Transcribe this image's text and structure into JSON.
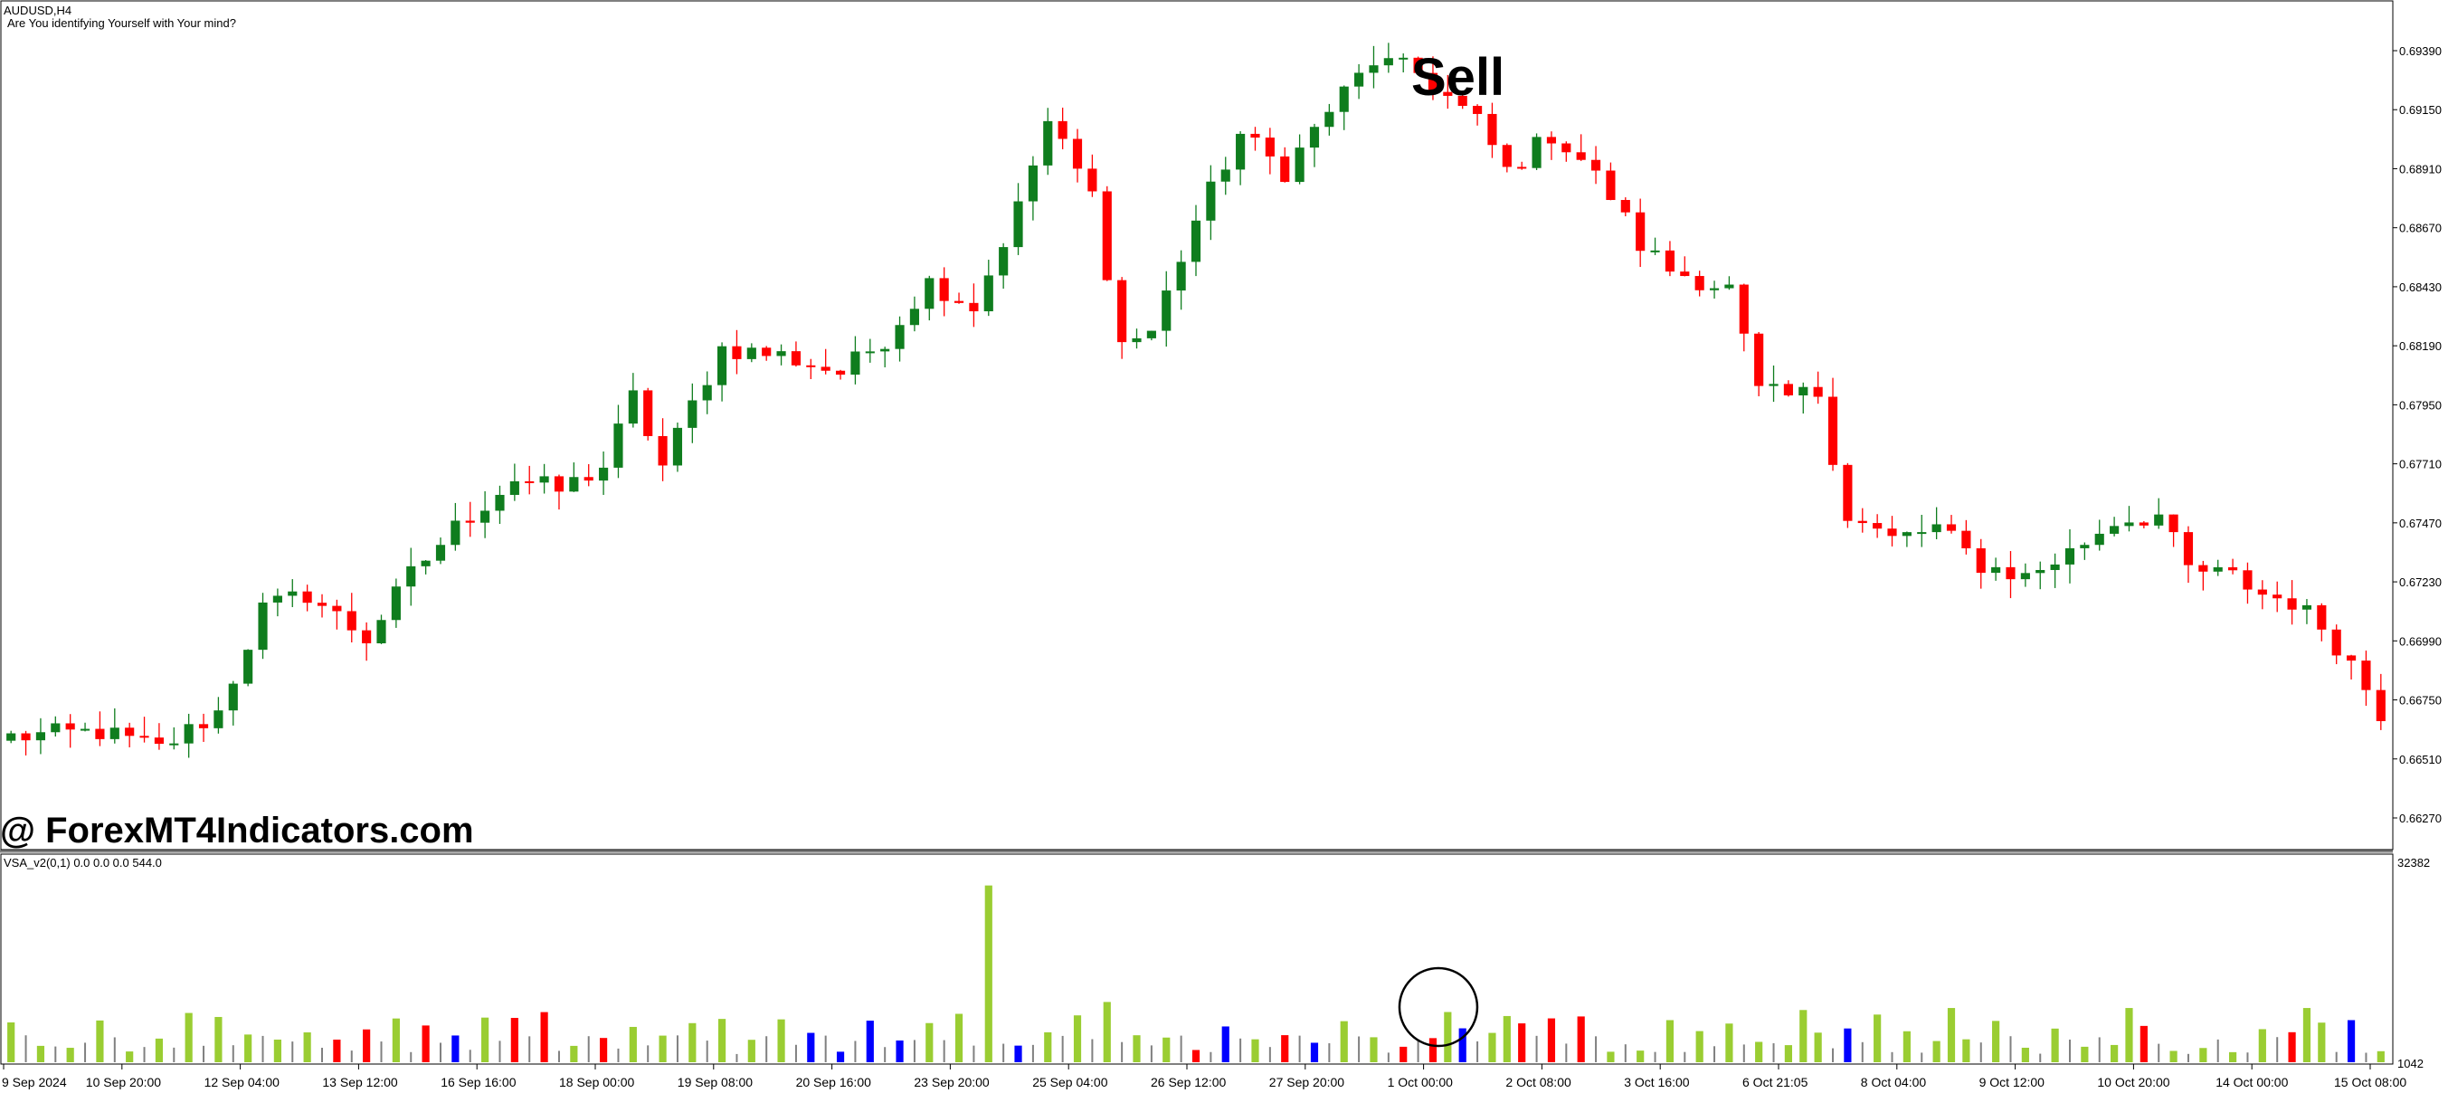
{
  "window": {
    "symbol": "AUDUSD,H4",
    "comment": "Are You identifying Yourself with Your mind?"
  },
  "annotations": {
    "sell": "Sell",
    "watermark": "@ ForexMT4Indicators.com"
  },
  "indicator": {
    "label": "VSA_v2(0,1) 0.0 0.0 0.0 544.0",
    "scale_top": "32382",
    "scale_bottom": "1042"
  },
  "colors": {
    "bull": "#0f7d1e",
    "bear": "#ff0000",
    "vol_green": "#9acd32",
    "vol_red": "#ff0000",
    "vol_blue": "#0000ff",
    "vol_gray": "#808080"
  },
  "chart_data": {
    "type": "candlestick",
    "y_ticks": [
      "0.69390",
      "0.69150",
      "0.68910",
      "0.68670",
      "0.68430",
      "0.68190",
      "0.67950",
      "0.67710",
      "0.67470",
      "0.67230",
      "0.66990",
      "0.66750",
      "0.66510",
      "0.66270"
    ],
    "x_ticks": [
      "9 Sep 2024",
      "10 Sep 20:00",
      "12 Sep 04:00",
      "13 Sep 12:00",
      "16 Sep 16:00",
      "18 Sep 00:00",
      "19 Sep 08:00",
      "20 Sep 16:00",
      "23 Sep 20:00",
      "25 Sep 04:00",
      "26 Sep 12:00",
      "27 Sep 20:00",
      "1 Oct 00:00",
      "2 Oct 08:00",
      "3 Oct 16:00",
      "6 Oct 21:05",
      "8 Oct 04:00",
      "9 Oct 12:00",
      "10 Oct 20:00",
      "14 Oct 00:00",
      "15 Oct 08:00"
    ],
    "ylim": [
      0.6612,
      0.6955
    ],
    "anchors": [
      [
        0,
        0.666
      ],
      [
        6,
        0.6662
      ],
      [
        10,
        0.6655
      ],
      [
        14,
        0.667
      ],
      [
        17,
        0.6712
      ],
      [
        20,
        0.6718
      ],
      [
        24,
        0.67
      ],
      [
        27,
        0.6726
      ],
      [
        30,
        0.6745
      ],
      [
        34,
        0.6765
      ],
      [
        37,
        0.676
      ],
      [
        40,
        0.677
      ],
      [
        42,
        0.6798
      ],
      [
        44,
        0.677
      ],
      [
        46,
        0.6795
      ],
      [
        48,
        0.6818
      ],
      [
        52,
        0.6815
      ],
      [
        56,
        0.6808
      ],
      [
        59,
        0.6822
      ],
      [
        62,
        0.6845
      ],
      [
        65,
        0.6835
      ],
      [
        68,
        0.6875
      ],
      [
        70,
        0.691
      ],
      [
        73,
        0.688
      ],
      [
        75,
        0.682
      ],
      [
        77,
        0.6825
      ],
      [
        80,
        0.687
      ],
      [
        83,
        0.6905
      ],
      [
        86,
        0.689
      ],
      [
        89,
        0.6915
      ],
      [
        92,
        0.6935
      ],
      [
        95,
        0.693
      ],
      [
        97,
        0.692
      ],
      [
        99,
        0.691
      ],
      [
        101,
        0.689
      ],
      [
        104,
        0.6905
      ],
      [
        106,
        0.6895
      ],
      [
        108,
        0.688
      ],
      [
        110,
        0.686
      ],
      [
        112,
        0.685
      ],
      [
        114,
        0.6846
      ],
      [
        116,
        0.6842
      ],
      [
        118,
        0.68
      ],
      [
        120,
        0.6798
      ],
      [
        122,
        0.68
      ],
      [
        124,
        0.675
      ],
      [
        127,
        0.674
      ],
      [
        130,
        0.6745
      ],
      [
        133,
        0.673
      ],
      [
        136,
        0.6725
      ],
      [
        139,
        0.6735
      ],
      [
        142,
        0.6748
      ],
      [
        145,
        0.675
      ],
      [
        147,
        0.6728
      ],
      [
        150,
        0.6725
      ],
      [
        152,
        0.6718
      ],
      [
        154,
        0.6715
      ],
      [
        156,
        0.6705
      ],
      [
        158,
        0.669
      ],
      [
        160,
        0.667
      ]
    ],
    "count": 161
  },
  "volume_data": {
    "ylim": [
      0,
      32382
    ],
    "circle_index": 96
  }
}
